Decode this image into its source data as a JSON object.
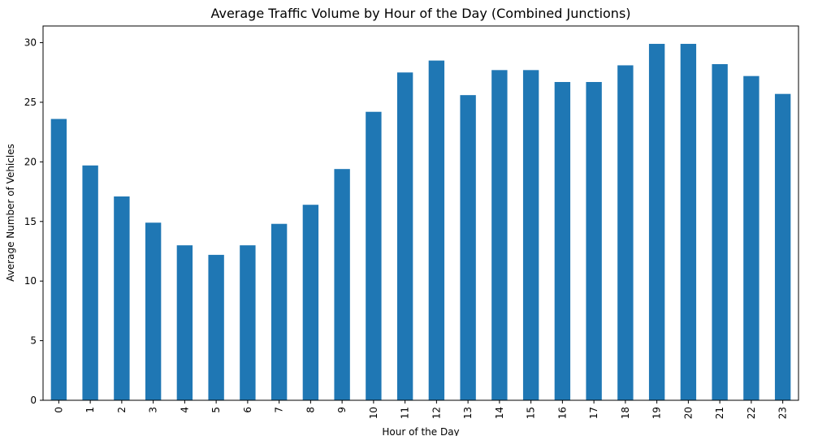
{
  "chart_data": {
    "type": "bar",
    "title": "Average Traffic Volume by Hour of the Day (Combined Junctions)",
    "xlabel": "Hour of the Day",
    "ylabel": "Average Number of Vehicles",
    "categories": [
      "0",
      "1",
      "2",
      "3",
      "4",
      "5",
      "6",
      "7",
      "8",
      "9",
      "10",
      "11",
      "12",
      "13",
      "14",
      "15",
      "16",
      "17",
      "18",
      "19",
      "20",
      "21",
      "22",
      "23"
    ],
    "values": [
      23.6,
      19.7,
      17.1,
      14.9,
      13.0,
      12.2,
      13.0,
      14.8,
      16.4,
      19.4,
      24.2,
      27.5,
      28.5,
      25.6,
      27.7,
      27.7,
      26.7,
      26.7,
      28.1,
      29.9,
      29.9,
      28.2,
      27.2,
      25.7
    ],
    "ylim": [
      0,
      31.4
    ],
    "yticks": [
      0,
      5,
      10,
      15,
      20,
      25,
      30
    ],
    "tick_label_rotation": "vertical",
    "grid": false,
    "legend": false,
    "colors": {
      "bar": "#1f77b4",
      "axes": "#000000",
      "background": "#ffffff"
    }
  }
}
